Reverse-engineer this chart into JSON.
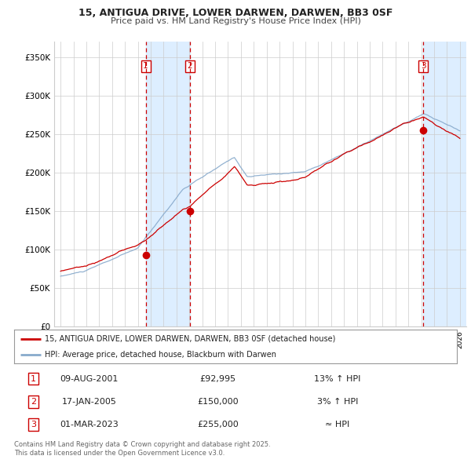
{
  "title": "15, ANTIGUA DRIVE, LOWER DARWEN, DARWEN, BB3 0SF",
  "subtitle": "Price paid vs. HM Land Registry's House Price Index (HPI)",
  "ylabel_ticks": [
    "£0",
    "£50K",
    "£100K",
    "£150K",
    "£200K",
    "£250K",
    "£300K",
    "£350K"
  ],
  "ytick_values": [
    0,
    50000,
    100000,
    150000,
    200000,
    250000,
    300000,
    350000
  ],
  "ylim": [
    0,
    370000
  ],
  "xlim_start": 1994.5,
  "xlim_end": 2026.5,
  "sale_dates": [
    2001.608,
    2005.046,
    2023.163
  ],
  "sale_prices": [
    92995,
    150000,
    255000
  ],
  "sale_labels": [
    "1",
    "2",
    "3"
  ],
  "legend_entries": [
    "15, ANTIGUA DRIVE, LOWER DARWEN, DARWEN, BB3 0SF (detached house)",
    "HPI: Average price, detached house, Blackburn with Darwen"
  ],
  "table_rows": [
    [
      "1",
      "09-AUG-2001",
      "£92,995",
      "13% ↑ HPI"
    ],
    [
      "2",
      "17-JAN-2005",
      "£150,000",
      "3% ↑ HPI"
    ],
    [
      "3",
      "01-MAR-2023",
      "£255,000",
      "≈ HPI"
    ]
  ],
  "footnote": "Contains HM Land Registry data © Crown copyright and database right 2025.\nThis data is licensed under the Open Government Licence v3.0.",
  "red_color": "#cc0000",
  "blue_color": "#88aacc",
  "shade_color": "#ddeeff",
  "background_color": "#ffffff",
  "grid_color": "#cccccc"
}
